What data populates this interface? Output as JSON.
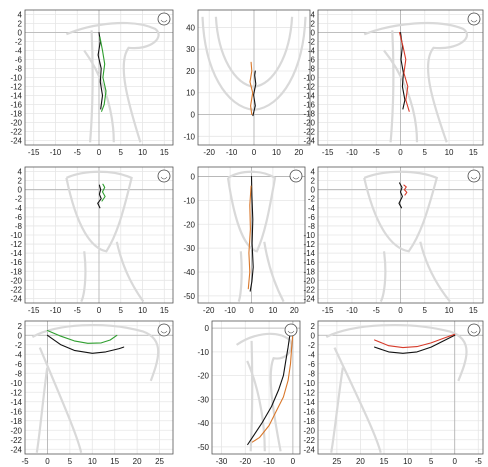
{
  "colors": {
    "background": "#ffffff",
    "grid": "#e6e6e6",
    "axis_zero": "#b0b0b0",
    "outline": "#d9d9d9",
    "frame": "#555555",
    "black": "#111111",
    "green": "#2e9e2e",
    "orange": "#d9772a",
    "red": "#d63a2a"
  },
  "icons": [
    "head-icon"
  ],
  "chart_data": [
    {
      "id": "p1",
      "type": "line",
      "view": "sagittal",
      "icon": "head-icon",
      "xlim": [
        -17,
        17
      ],
      "ylim": [
        -25,
        5
      ],
      "x_ticks": [
        "-15",
        "-10",
        "-5",
        "0",
        "5",
        "10",
        "15"
      ],
      "y_ticks": [
        "4",
        "2",
        "0",
        "-2",
        "-4",
        "-6",
        "-8",
        "-10",
        "-12",
        "-14",
        "-16",
        "-18",
        "-20",
        "-22",
        "-24"
      ],
      "series": [
        {
          "color": "black",
          "points": [
            [
              0,
              0
            ],
            [
              0.3,
              -2
            ],
            [
              -0.2,
              -5
            ],
            [
              0.5,
              -8
            ],
            [
              0.3,
              -11
            ],
            [
              0.8,
              -14
            ],
            [
              0.4,
              -17
            ]
          ]
        },
        {
          "color": "green",
          "points": [
            [
              0.2,
              -1
            ],
            [
              0.8,
              -4
            ],
            [
              1.3,
              -7
            ],
            [
              0.9,
              -10
            ],
            [
              1.6,
              -13
            ],
            [
              1.2,
              -16
            ],
            [
              0.6,
              -17.5
            ]
          ]
        }
      ]
    },
    {
      "id": "p2",
      "type": "line",
      "view": "occlusal",
      "icon": "",
      "xlim": [
        -25,
        25
      ],
      "ylim": [
        -14,
        48
      ],
      "x_ticks": [
        "-20",
        "-10",
        "0",
        "10",
        "20"
      ],
      "y_ticks": [
        "40",
        "30",
        "20",
        "10",
        "0",
        "-10"
      ],
      "series": [
        {
          "color": "black",
          "points": [
            [
              -0.5,
              -0.5
            ],
            [
              0.6,
              4
            ],
            [
              -0.2,
              9
            ],
            [
              0.8,
              14
            ],
            [
              0.3,
              18
            ],
            [
              0.6,
              20
            ]
          ]
        },
        {
          "color": "orange",
          "points": [
            [
              -1,
              0
            ],
            [
              -1.5,
              4
            ],
            [
              -0.6,
              10
            ],
            [
              -1.8,
              15
            ],
            [
              -1,
              20
            ],
            [
              -1.3,
              24
            ]
          ]
        }
      ]
    },
    {
      "id": "p3",
      "type": "line",
      "view": "sagittal",
      "icon": "head-icon",
      "xlim": [
        -17,
        17
      ],
      "ylim": [
        -25,
        5
      ],
      "x_ticks": [
        "-15",
        "-10",
        "-5",
        "0",
        "5",
        "10",
        "15"
      ],
      "y_ticks": [
        "4",
        "2",
        "0",
        "-2",
        "-4",
        "-6",
        "-8",
        "-10",
        "-12",
        "-14",
        "-16",
        "-18",
        "-20",
        "-22",
        "-24"
      ],
      "series": [
        {
          "color": "black",
          "points": [
            [
              0,
              0
            ],
            [
              0.4,
              -3
            ],
            [
              0.1,
              -6
            ],
            [
              0.6,
              -9
            ],
            [
              0.4,
              -12
            ],
            [
              0.9,
              -15
            ],
            [
              0.5,
              -17
            ]
          ]
        },
        {
          "color": "red",
          "points": [
            [
              -0.2,
              0
            ],
            [
              0.5,
              -3
            ],
            [
              1.1,
              -6
            ],
            [
              0.7,
              -9
            ],
            [
              1.5,
              -12
            ],
            [
              1.1,
              -15
            ],
            [
              1.8,
              -17.5
            ]
          ]
        }
      ]
    },
    {
      "id": "p4",
      "type": "line",
      "view": "frontal",
      "icon": "head-icon",
      "xlim": [
        -17,
        17
      ],
      "ylim": [
        -25,
        5
      ],
      "x_ticks": [
        "-15",
        "-10",
        "-5",
        "0",
        "5",
        "10",
        "15"
      ],
      "y_ticks": [
        "4",
        "2",
        "0",
        "-2",
        "-4",
        "-6",
        "-8",
        "-10",
        "-12",
        "-14",
        "-16",
        "-18",
        "-20",
        "-22",
        "-24"
      ],
      "series": [
        {
          "color": "black",
          "points": [
            [
              0.1,
              1
            ],
            [
              0.4,
              0
            ],
            [
              0.1,
              -1
            ],
            [
              0.5,
              -2
            ],
            [
              -0.3,
              -3
            ],
            [
              0.2,
              -4
            ]
          ]
        },
        {
          "color": "green",
          "points": [
            [
              0.9,
              1.2
            ],
            [
              1.3,
              0.5
            ],
            [
              0.8,
              -0.5
            ],
            [
              1.4,
              -1.5
            ],
            [
              0.7,
              -2.5
            ]
          ]
        }
      ]
    },
    {
      "id": "p5",
      "type": "line",
      "view": "frontal",
      "icon": "head-icon",
      "xlim": [
        -25,
        25
      ],
      "ylim": [
        -53,
        4
      ],
      "x_ticks": [
        "-20",
        "-10",
        "0",
        "10",
        "20"
      ],
      "y_ticks": [
        "0",
        "-10",
        "-20",
        "-30",
        "-40",
        "-50"
      ],
      "series": [
        {
          "color": "black",
          "points": [
            [
              0,
              0
            ],
            [
              0.2,
              -8
            ],
            [
              0.6,
              -18
            ],
            [
              0.3,
              -28
            ],
            [
              0.8,
              -38
            ],
            [
              0.2,
              -44
            ],
            [
              -0.6,
              -48
            ]
          ]
        },
        {
          "color": "orange",
          "points": [
            [
              -0.2,
              -4
            ],
            [
              -0.8,
              -12
            ],
            [
              -0.5,
              -22
            ],
            [
              -1.2,
              -32
            ],
            [
              -0.8,
              -40
            ],
            [
              -1.5,
              -47
            ]
          ]
        }
      ]
    },
    {
      "id": "p6",
      "type": "line",
      "view": "frontal",
      "icon": "head-icon",
      "xlim": [
        -17,
        17
      ],
      "ylim": [
        -25,
        5
      ],
      "x_ticks": [
        "-15",
        "-10",
        "-5",
        "0",
        "5",
        "10",
        "15"
      ],
      "y_ticks": [
        "4",
        "2",
        "0",
        "-2",
        "-4",
        "-6",
        "-8",
        "-10",
        "-12",
        "-14",
        "-16",
        "-18",
        "-20",
        "-22",
        "-24"
      ],
      "series": [
        {
          "color": "black",
          "points": [
            [
              -0.2,
              1.5
            ],
            [
              0.3,
              0.5
            ],
            [
              0,
              -0.5
            ],
            [
              0.4,
              -1.5
            ],
            [
              -0.3,
              -3
            ],
            [
              0.2,
              -4
            ]
          ]
        },
        {
          "color": "red",
          "points": [
            [
              0.7,
              1
            ],
            [
              1.2,
              0.6
            ],
            [
              0.8,
              0
            ],
            [
              1.3,
              -0.6
            ],
            [
              0.9,
              -1.2
            ]
          ]
        }
      ]
    },
    {
      "id": "p7",
      "type": "line",
      "view": "axial",
      "icon": "head-icon",
      "xlim": [
        -5,
        28
      ],
      "ylim": [
        -25,
        3
      ],
      "x_ticks": [
        "-5",
        "0",
        "5",
        "10",
        "15",
        "20",
        "25"
      ],
      "y_ticks": [
        "2",
        "0",
        "-2",
        "-4",
        "-6",
        "-8",
        "-10",
        "-12",
        "-14",
        "-16",
        "-18",
        "-20",
        "-22",
        "-24"
      ],
      "series": [
        {
          "color": "black",
          "points": [
            [
              0,
              0
            ],
            [
              3,
              -2
            ],
            [
              6,
              -3.2
            ],
            [
              10,
              -3.8
            ],
            [
              13,
              -3.5
            ],
            [
              16,
              -2.8
            ],
            [
              17,
              -2.5
            ]
          ]
        },
        {
          "color": "green",
          "points": [
            [
              0,
              1
            ],
            [
              3,
              -0.2
            ],
            [
              6,
              -1.2
            ],
            [
              9,
              -1.7
            ],
            [
              12,
              -1.6
            ],
            [
              14,
              -1
            ],
            [
              15.5,
              0
            ]
          ]
        }
      ]
    },
    {
      "id": "p8",
      "type": "line",
      "view": "sagittal",
      "icon": "head-icon",
      "xlim": [
        -34,
        3
      ],
      "ylim": [
        -53,
        3
      ],
      "x_ticks": [
        "-30",
        "-20",
        "-10",
        "0"
      ],
      "y_ticks": [
        "0",
        "-10",
        "-20",
        "-30",
        "-40",
        "-50"
      ],
      "series": [
        {
          "color": "black",
          "points": [
            [
              -1,
              -1
            ],
            [
              -2,
              -8
            ],
            [
              -3,
              -14
            ],
            [
              -4,
              -20
            ],
            [
              -6,
              -26
            ],
            [
              -9,
              -33
            ],
            [
              -13,
              -40
            ],
            [
              -17,
              -46
            ],
            [
              -19,
              -49
            ]
          ]
        },
        {
          "color": "orange",
          "points": [
            [
              0,
              -2
            ],
            [
              -0.5,
              -8
            ],
            [
              -1,
              -15
            ],
            [
              -2,
              -22
            ],
            [
              -4,
              -29
            ],
            [
              -7,
              -35
            ],
            [
              -10,
              -41
            ],
            [
              -14,
              -46
            ],
            [
              -17,
              -48
            ]
          ]
        }
      ]
    },
    {
      "id": "p9",
      "type": "line",
      "view": "axial",
      "icon": "head-icon",
      "xlim": [
        29,
        -6
      ],
      "ylim": [
        -25,
        3
      ],
      "x_ticks": [
        "25",
        "20",
        "15",
        "10",
        "5",
        "0",
        "-5"
      ],
      "y_ticks": [
        "2",
        "0",
        "-2",
        "-4",
        "-6",
        "-8",
        "-10",
        "-12",
        "-14",
        "-16",
        "-18",
        "-20",
        "-22",
        "-24"
      ],
      "series": [
        {
          "color": "black",
          "points": [
            [
              17,
              -2.5
            ],
            [
              14,
              -3.5
            ],
            [
              11,
              -3.8
            ],
            [
              8,
              -3.5
            ],
            [
              5,
              -2.5
            ],
            [
              2,
              -1
            ],
            [
              0,
              0
            ]
          ]
        },
        {
          "color": "red",
          "points": [
            [
              17,
              -1
            ],
            [
              14,
              -2.2
            ],
            [
              11,
              -2.6
            ],
            [
              8,
              -2.4
            ],
            [
              5,
              -1.6
            ],
            [
              2,
              -0.5
            ],
            [
              0,
              0.2
            ]
          ]
        }
      ]
    }
  ]
}
